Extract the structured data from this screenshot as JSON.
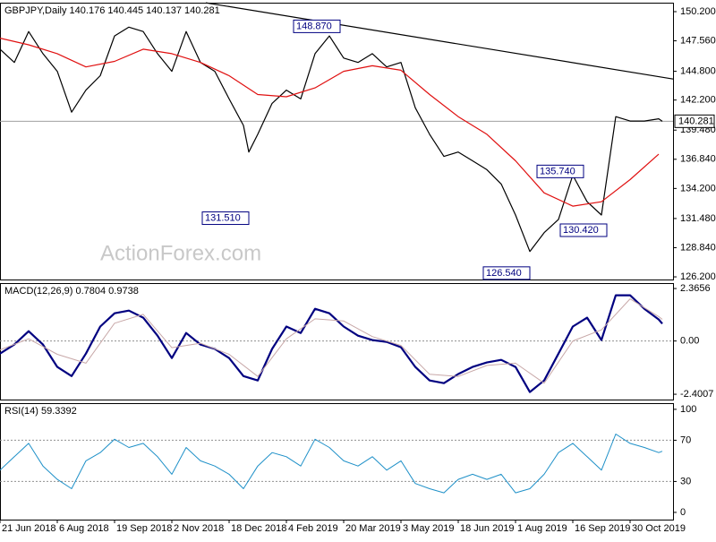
{
  "chart_data": [
    {
      "type": "line",
      "title": "GBPJPY,Daily  140.176 140.445 140.137 140.281",
      "watermark": "ActionForex.com",
      "xlim": [
        0,
        376
      ],
      "ylim": [
        125.96,
        151.01
      ],
      "yticks": [
        {
          "value": 150.2,
          "label": "150.200"
        },
        {
          "value": 147.56,
          "label": "147.560"
        },
        {
          "value": 144.8,
          "label": "144.800"
        },
        {
          "value": 142.2,
          "label": "142.200"
        },
        {
          "value": 139.48,
          "label": "139.480"
        },
        {
          "value": 136.84,
          "label": "136.840"
        },
        {
          "value": 134.2,
          "label": "134.200"
        },
        {
          "value": 131.48,
          "label": "131.480"
        },
        {
          "value": 128.84,
          "label": "128.840"
        },
        {
          "value": 126.2,
          "label": "126.200"
        }
      ],
      "current": {
        "value": 140.281,
        "label": "140.281"
      },
      "series": [
        {
          "color": "#000000",
          "width": 1.2,
          "x": [
            0,
            8,
            16,
            24,
            32,
            40,
            48,
            56,
            64,
            72,
            80,
            88,
            96,
            104,
            112,
            120,
            128,
            136,
            139,
            144,
            152,
            160,
            168,
            176,
            184,
            192,
            200,
            208,
            216,
            224,
            232,
            240,
            248,
            256,
            264,
            272,
            280,
            288,
            296,
            304,
            312,
            320,
            328,
            336,
            344,
            352,
            360,
            368,
            370
          ],
          "values": [
            146.8,
            145.6,
            148.4,
            146.4,
            144.8,
            141.1,
            143.1,
            144.4,
            148.0,
            148.8,
            148.4,
            146.4,
            144.8,
            148.4,
            145.6,
            144.8,
            142.3,
            139.9,
            137.5,
            139.1,
            141.9,
            143.1,
            142.3,
            146.4,
            148.0,
            146.0,
            145.6,
            146.4,
            145.2,
            145.6,
            141.5,
            139.1,
            137.1,
            137.5,
            136.7,
            135.9,
            134.6,
            131.8,
            128.5,
            130.2,
            131.4,
            135.4,
            133.0,
            131.8,
            140.7,
            140.3,
            140.3,
            140.5,
            140.28
          ]
        },
        {
          "color": "#e01010",
          "width": 1.2,
          "x": [
            0,
            16,
            32,
            48,
            64,
            80,
            96,
            112,
            128,
            144,
            160,
            176,
            192,
            208,
            224,
            240,
            256,
            272,
            288,
            304,
            320,
            336,
            352,
            368
          ],
          "values": [
            147.8,
            147.2,
            146.4,
            145.2,
            145.7,
            146.8,
            146.4,
            145.6,
            144.4,
            142.7,
            142.5,
            143.3,
            144.8,
            145.3,
            144.9,
            142.7,
            140.7,
            139.1,
            136.7,
            133.8,
            132.6,
            133.0,
            135.0,
            137.3
          ]
        },
        {
          "color": "#000000",
          "width": 1.2,
          "x": [
            115,
            376
          ],
          "values": [
            151.0,
            144.1
          ]
        }
      ],
      "annotations": [
        {
          "value": 148.87,
          "label": "148.870",
          "x": 190
        },
        {
          "value": 131.51,
          "label": "131.510",
          "x": 139
        },
        {
          "value": 135.74,
          "label": "135.740",
          "x": 326
        },
        {
          "value": 130.42,
          "label": "130.420",
          "x": 339
        },
        {
          "value": 126.54,
          "label": "126.540",
          "x": 296
        }
      ]
    },
    {
      "type": "line",
      "title": "MACD(12,26,9) 0.7804 0.9738",
      "xlim": [
        0,
        376
      ],
      "ylim": [
        -2.64,
        2.61
      ],
      "yticks": [
        2.3656,
        {
          "value": 0,
          "label": "0.00"
        },
        -2.4007
      ],
      "levels": [
        0
      ],
      "series": [
        {
          "color": "#000080",
          "width": 2.2,
          "x": [
            0,
            8,
            16,
            24,
            32,
            40,
            48,
            56,
            64,
            72,
            80,
            88,
            96,
            104,
            112,
            120,
            128,
            136,
            144,
            152,
            160,
            168,
            176,
            184,
            192,
            200,
            208,
            216,
            224,
            232,
            240,
            248,
            256,
            264,
            272,
            280,
            288,
            296,
            304,
            312,
            320,
            328,
            336,
            344,
            352,
            360,
            368,
            370
          ],
          "values": [
            -0.57,
            -0.16,
            0.44,
            -0.16,
            -1.17,
            -1.58,
            -0.57,
            0.65,
            1.25,
            1.37,
            1.05,
            0.24,
            -0.77,
            0.36,
            -0.16,
            -0.36,
            -0.77,
            -1.58,
            -1.78,
            -0.36,
            0.65,
            0.36,
            1.45,
            1.25,
            0.65,
            0.24,
            0.04,
            -0.04,
            -0.28,
            -1.17,
            -1.78,
            -1.9,
            -1.49,
            -1.17,
            -0.97,
            -0.85,
            -1.17,
            -2.3,
            -1.78,
            -0.57,
            0.65,
            1.05,
            0.04,
            2.06,
            2.06,
            1.45,
            0.97,
            0.7804
          ]
        },
        {
          "color": "#c8a8a8",
          "width": 1,
          "x": [
            0,
            16,
            32,
            48,
            64,
            80,
            96,
            112,
            128,
            144,
            160,
            176,
            192,
            208,
            224,
            240,
            256,
            272,
            288,
            304,
            320,
            336,
            352,
            368,
            370
          ],
          "values": [
            -0.4,
            0.1,
            -0.6,
            -1.0,
            0.8,
            1.2,
            -0.3,
            -0.1,
            -0.6,
            -1.6,
            0.1,
            1.0,
            0.9,
            0.2,
            -0.2,
            -1.5,
            -1.6,
            -1.1,
            -1.0,
            -1.9,
            0.0,
            0.5,
            1.9,
            1.1,
            0.9738
          ]
        }
      ]
    },
    {
      "type": "line",
      "title": "RSI(14) 59.3392",
      "xlim": [
        0,
        376
      ],
      "ylim": [
        -7,
        106
      ],
      "yticks": [
        100,
        70,
        30,
        0
      ],
      "levels": [
        70,
        30
      ],
      "xticks": [
        {
          "value": 0,
          "label": "21 Jun 2018"
        },
        {
          "value": 32,
          "label": "6 Aug 2018"
        },
        {
          "value": 64,
          "label": "19 Sep 2018"
        },
        {
          "value": 96,
          "label": "2 Nov 2018"
        },
        {
          "value": 128,
          "label": "18 Dec 2018"
        },
        {
          "value": 160,
          "label": "4 Feb 2019"
        },
        {
          "value": 192,
          "label": "20 Mar 2019"
        },
        {
          "value": 224,
          "label": "3 May 2019"
        },
        {
          "value": 256,
          "label": "18 Jun 2019"
        },
        {
          "value": 288,
          "label": "1 Aug 2019"
        },
        {
          "value": 320,
          "label": "16 Sep 2019"
        },
        {
          "value": 352,
          "label": "30 Oct 2019"
        }
      ],
      "series": [
        {
          "color": "#1e90c8",
          "width": 1,
          "x": [
            0,
            8,
            16,
            24,
            32,
            40,
            48,
            56,
            64,
            72,
            80,
            88,
            96,
            104,
            112,
            120,
            128,
            136,
            144,
            152,
            160,
            168,
            176,
            184,
            192,
            200,
            208,
            216,
            224,
            232,
            240,
            248,
            256,
            264,
            272,
            280,
            288,
            296,
            304,
            312,
            320,
            328,
            336,
            344,
            352,
            360,
            368,
            370
          ],
          "values": [
            41,
            54,
            67,
            45,
            32,
            23,
            50,
            58,
            71,
            63,
            67,
            54,
            37,
            63,
            50,
            45,
            37,
            23,
            45,
            58,
            54,
            45,
            71,
            63,
            50,
            45,
            54,
            41,
            50,
            28,
            23,
            19,
            32,
            37,
            32,
            37,
            19,
            23,
            37,
            58,
            67,
            54,
            41,
            76,
            67,
            63,
            58,
            59.3392
          ]
        }
      ]
    }
  ]
}
